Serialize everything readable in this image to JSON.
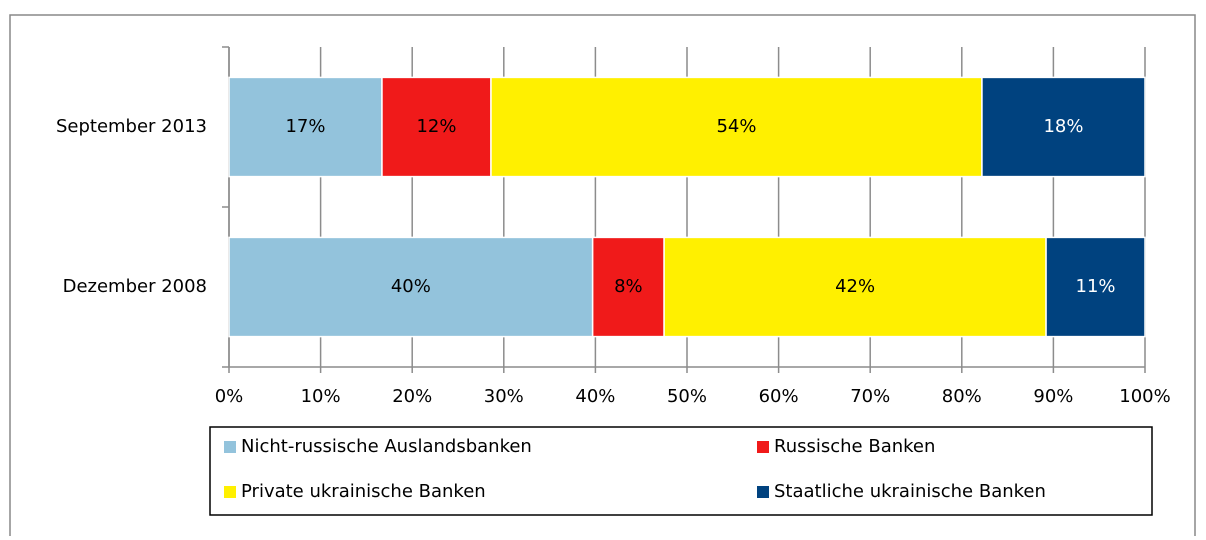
{
  "chart_data": {
    "type": "stacked_bar_horizontal",
    "categories": [
      "September 2013",
      "Dezember 2008"
    ],
    "series": [
      {
        "name": "Nicht-russische Auslandsbanken",
        "color": "#93c3dc",
        "values": [
          16.7,
          39.7
        ],
        "value_labels": [
          "17%",
          "40%"
        ]
      },
      {
        "name": "Russische Banken",
        "color": "#f01a1a",
        "values": [
          11.9,
          7.8
        ],
        "value_labels": [
          "12%",
          "8%"
        ]
      },
      {
        "name": "Private ukrainische Banken",
        "color": "#fff000",
        "values": [
          53.6,
          41.7
        ],
        "value_labels": [
          "54%",
          "42%"
        ]
      },
      {
        "name": "Staatliche ukrainische Banken",
        "color": "#00427f",
        "values": [
          17.8,
          10.8
        ],
        "value_labels": [
          "18%",
          "11%"
        ]
      }
    ],
    "xlim": [
      0,
      100
    ],
    "xticks": [
      {
        "value": 0,
        "label": "0%"
      },
      {
        "value": 10,
        "label": "10%"
      },
      {
        "value": 20,
        "label": "20%"
      },
      {
        "value": 30,
        "label": "30%"
      },
      {
        "value": 40,
        "label": "40%"
      },
      {
        "value": 50,
        "label": "50%"
      },
      {
        "value": 60,
        "label": "60%"
      },
      {
        "value": 70,
        "label": "70%"
      },
      {
        "value": 80,
        "label": "80%"
      },
      {
        "value": 90,
        "label": "90%"
      },
      {
        "value": 100,
        "label": "100%"
      }
    ],
    "grid": true,
    "legend": "bottom"
  }
}
